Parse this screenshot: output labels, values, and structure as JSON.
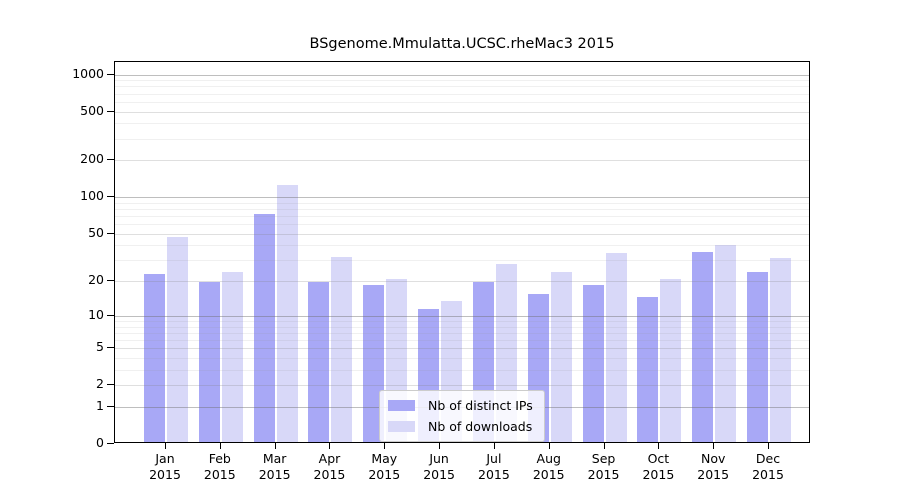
{
  "title": "BSgenome.Mmulatta.UCSC.rheMac3 2015",
  "chart_data": {
    "type": "bar",
    "title": "BSgenome.Mmulatta.UCSC.rheMac3 2015",
    "categories": [
      "Jan",
      "Feb",
      "Mar",
      "Apr",
      "May",
      "Jun",
      "Jul",
      "Aug",
      "Sep",
      "Oct",
      "Nov",
      "Dec"
    ],
    "x_year_label": "2015",
    "series": [
      {
        "name": "Nb of distinct IPs",
        "color": "#a8a8f6",
        "values": [
          22,
          19,
          70,
          19,
          18,
          11,
          19,
          15,
          18,
          14,
          34,
          23
        ]
      },
      {
        "name": "Nb of downloads",
        "color": "#d8d8f8",
        "values": [
          45,
          23,
          122,
          31,
          20,
          13,
          27,
          23,
          33,
          20,
          39,
          30
        ]
      }
    ],
    "yscale": "log1p",
    "yticks": [
      0,
      1,
      2,
      5,
      10,
      20,
      50,
      100,
      200,
      500,
      1000
    ],
    "ylim": [
      0,
      1000
    ],
    "xlabel": "",
    "ylabel": "",
    "grid": "horizontal, minor log gridlines",
    "legend_position": "inside bottom-center",
    "frame": "full box border"
  }
}
